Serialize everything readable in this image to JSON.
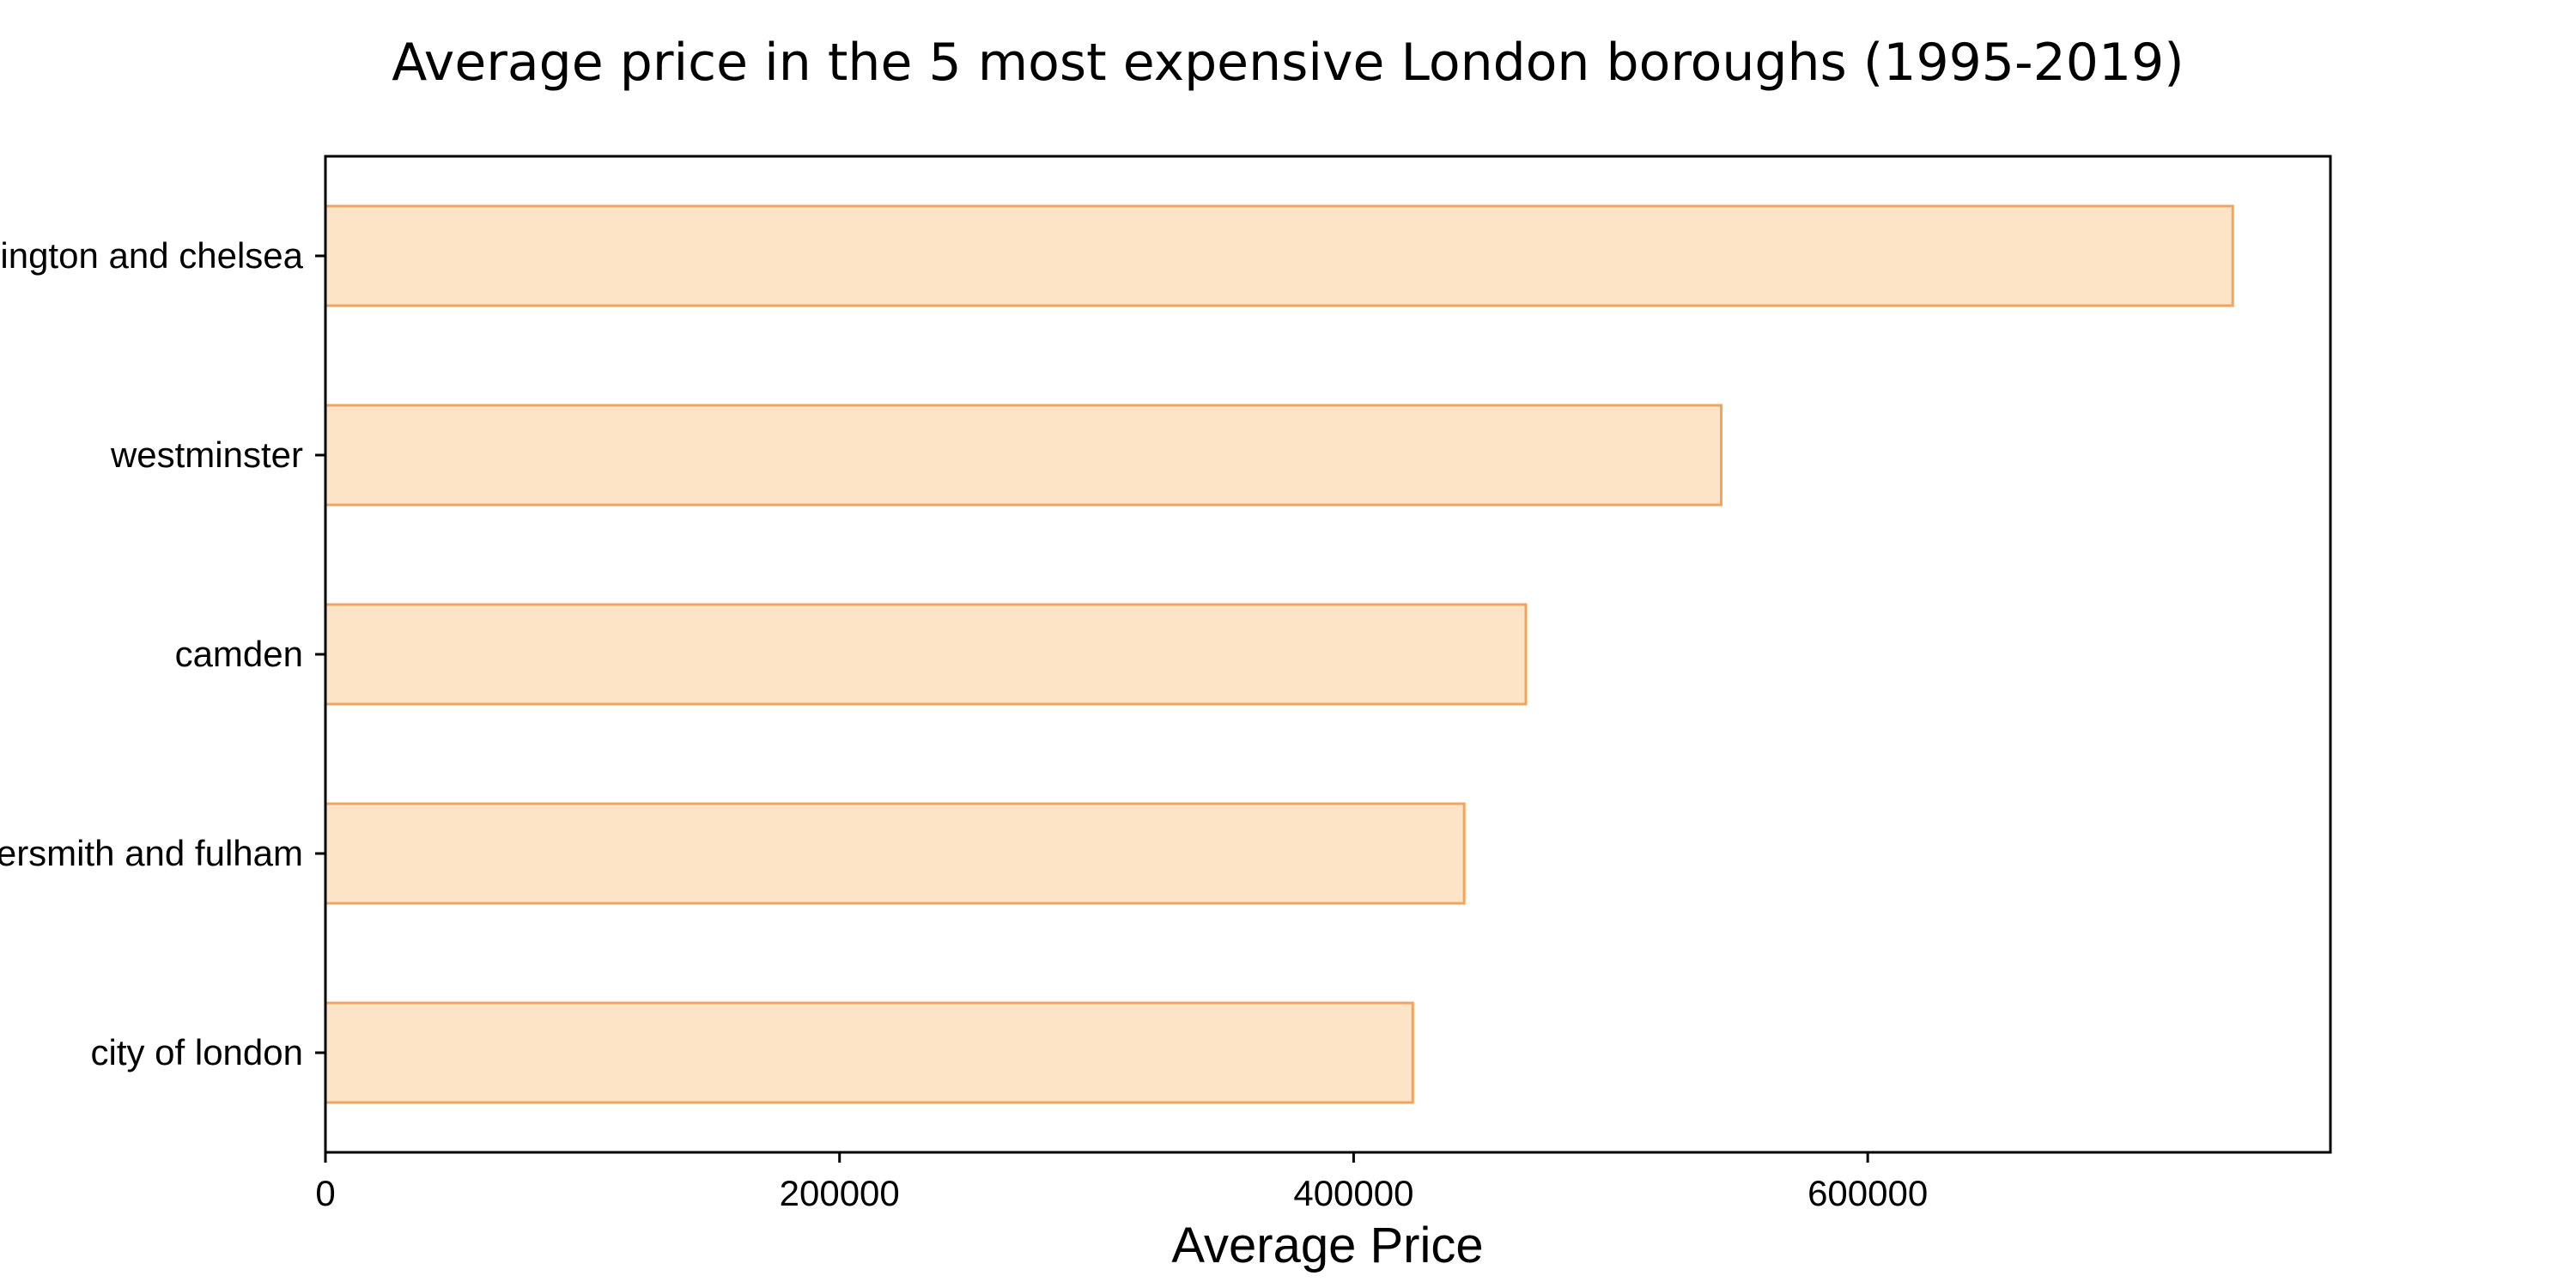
{
  "chart_data": {
    "type": "bar",
    "orientation": "horizontal",
    "title": "Average price in the 5 most expensive London boroughs (1995-2019)",
    "xlabel": "Average Price",
    "ylabel": "",
    "categories": [
      "kensington and chelsea",
      "westminster",
      "camden",
      "hammersmith and fulham",
      "city of london"
    ],
    "values": [
      742000,
      543000,
      467000,
      443000,
      423000
    ],
    "xlim": [
      0,
      780000
    ],
    "xticks": [
      0,
      200000,
      400000,
      600000
    ],
    "xtick_labels": [
      "0",
      "200000",
      "400000",
      "600000"
    ],
    "grid": false,
    "bar_fill_color": "#fde4c6",
    "bar_edge_color": "#f0a45f"
  }
}
